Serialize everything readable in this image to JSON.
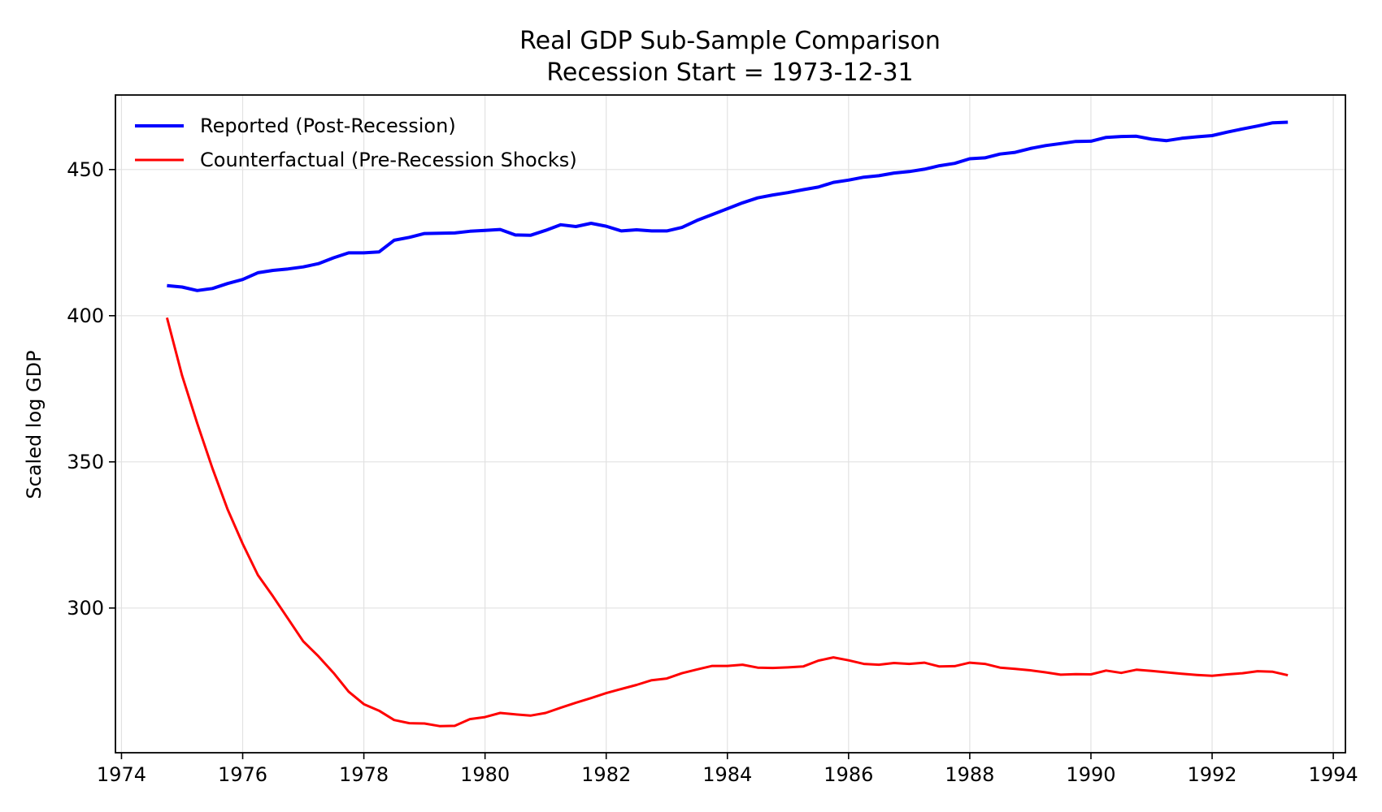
{
  "chart_data": {
    "type": "line",
    "title": "Real GDP Sub-Sample Comparison",
    "subtitle": "Recession Start = 1973-12-31",
    "xlabel": "",
    "ylabel": "Scaled log GDP",
    "xlim": [
      1973.9,
      1994.2
    ],
    "ylim": [
      250.5,
      475.5
    ],
    "x_ticks": [
      1974,
      1976,
      1978,
      1980,
      1982,
      1984,
      1986,
      1988,
      1990,
      1992,
      1994
    ],
    "y_ticks": [
      300,
      350,
      400,
      450
    ],
    "grid": true,
    "legend_position": "top-left",
    "series": [
      {
        "name": "Reported (Post-Recession)",
        "color": "#0000ff",
        "x": [
          1974.75,
          1975.0,
          1975.25,
          1975.5,
          1975.75,
          1976.0,
          1976.25,
          1976.5,
          1976.75,
          1977.0,
          1977.25,
          1977.5,
          1977.75,
          1978.0,
          1978.25,
          1978.5,
          1978.75,
          1979.0,
          1979.25,
          1979.5,
          1979.75,
          1980.0,
          1980.25,
          1980.5,
          1980.75,
          1981.0,
          1981.25,
          1981.5,
          1981.75,
          1982.0,
          1982.25,
          1982.5,
          1982.75,
          1983.0,
          1983.25,
          1983.5,
          1983.75,
          1984.0,
          1984.25,
          1984.5,
          1984.75,
          1985.0,
          1985.25,
          1985.5,
          1985.75,
          1986.0,
          1986.25,
          1986.5,
          1986.75,
          1987.0,
          1987.25,
          1987.5,
          1987.75,
          1988.0,
          1988.25,
          1988.5,
          1988.75,
          1989.0,
          1989.25,
          1989.5,
          1989.75,
          1990.0,
          1990.25,
          1990.5,
          1990.75,
          1991.0,
          1991.25,
          1991.5,
          1991.75,
          1992.0,
          1992.25,
          1992.5,
          1992.75,
          1993.0,
          1993.25
        ],
        "values": [
          410.3,
          409.8,
          408.6,
          409.3,
          411.0,
          412.4,
          414.7,
          415.5,
          416.0,
          416.7,
          417.8,
          419.8,
          421.5,
          421.5,
          421.8,
          425.8,
          426.8,
          428.1,
          428.2,
          428.3,
          428.9,
          429.2,
          429.5,
          427.6,
          427.5,
          429.2,
          431.1,
          430.5,
          431.6,
          430.6,
          429.0,
          429.4,
          429.0,
          429.0,
          430.2,
          432.6,
          434.6,
          436.6,
          438.6,
          440.3,
          441.3,
          442.1,
          443.1,
          444.0,
          445.6,
          446.4,
          447.4,
          447.9,
          448.8,
          449.3,
          450.1,
          451.3,
          452.1,
          453.7,
          454.0,
          455.3,
          455.9,
          457.2,
          458.2,
          458.9,
          459.6,
          459.7,
          461.0,
          461.3,
          461.4,
          460.4,
          459.9,
          460.7,
          461.2,
          461.6,
          462.8,
          463.9,
          464.9,
          466.0,
          466.2
        ]
      },
      {
        "name": "Counterfactual (Pre-Recession Shocks)",
        "color": "#ff0000",
        "x": [
          1974.75,
          1975.0,
          1975.25,
          1975.5,
          1975.75,
          1976.0,
          1976.25,
          1976.5,
          1976.75,
          1977.0,
          1977.25,
          1977.5,
          1977.75,
          1978.0,
          1978.25,
          1978.5,
          1978.75,
          1979.0,
          1979.25,
          1979.5,
          1979.75,
          1980.0,
          1980.25,
          1980.5,
          1980.75,
          1981.0,
          1981.25,
          1981.5,
          1981.75,
          1982.0,
          1982.25,
          1982.5,
          1982.75,
          1983.0,
          1983.25,
          1983.5,
          1983.75,
          1984.0,
          1984.25,
          1984.5,
          1984.75,
          1985.0,
          1985.25,
          1985.5,
          1985.75,
          1986.0,
          1986.25,
          1986.5,
          1986.75,
          1987.0,
          1987.25,
          1987.5,
          1987.75,
          1988.0,
          1988.25,
          1988.5,
          1988.75,
          1989.0,
          1989.25,
          1989.5,
          1989.75,
          1990.0,
          1990.25,
          1990.5,
          1990.75,
          1991.0,
          1991.25,
          1991.5,
          1991.75,
          1992.0,
          1992.25,
          1992.5,
          1992.75,
          1993.0,
          1993.25
        ],
        "values": [
          399.3,
          379.5,
          363.2,
          347.8,
          333.8,
          322.0,
          311.3,
          304.0,
          296.3,
          288.6,
          283.5,
          277.8,
          271.4,
          267.1,
          264.9,
          261.7,
          260.6,
          260.5,
          259.6,
          259.7,
          262.0,
          262.7,
          264.1,
          263.6,
          263.2,
          264.1,
          265.9,
          267.6,
          269.2,
          270.9,
          272.3,
          273.7,
          275.3,
          275.9,
          277.7,
          279.0,
          280.2,
          280.2,
          280.6,
          279.6,
          279.5,
          279.7,
          280.0,
          282.0,
          283.1,
          282.1,
          280.9,
          280.6,
          281.2,
          280.9,
          281.3,
          280.0,
          280.1,
          281.3,
          280.9,
          279.6,
          279.2,
          278.7,
          278.0,
          277.2,
          277.4,
          277.3,
          278.6,
          277.8,
          278.9,
          278.5,
          278.0,
          277.5,
          277.1,
          276.8,
          277.3,
          277.7,
          278.4,
          278.2,
          277.0
        ]
      }
    ]
  }
}
